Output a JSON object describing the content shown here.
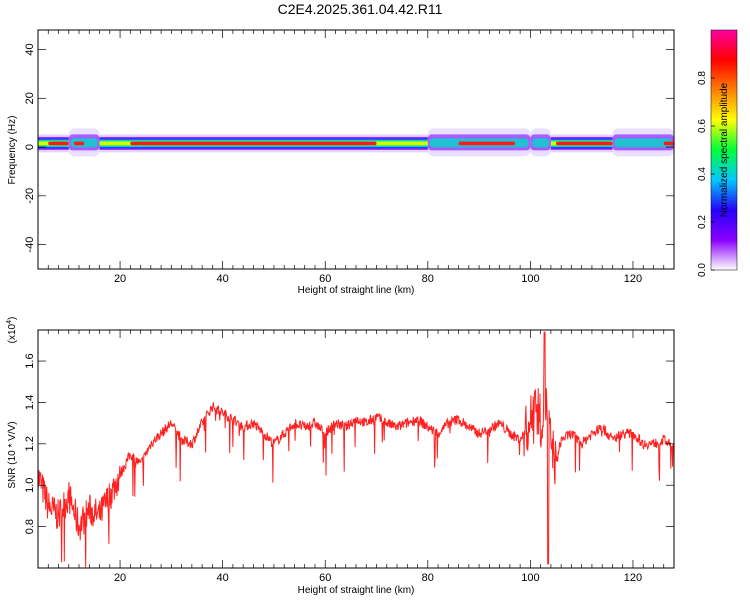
{
  "title": "C2E4.2025.361.04.42.R11",
  "colormap": {
    "stops": [
      "#ffffff",
      "#8a00ff",
      "#2600ff",
      "#00c8ff",
      "#00ff3c",
      "#ffff00",
      "#ff8000",
      "#ff0000",
      "#ff00a0"
    ],
    "ticks": [
      "0.0",
      "0.2",
      "0.4",
      "0.6",
      "0.8"
    ],
    "label": "Normalized spectral amplitude"
  },
  "chart_data": [
    {
      "type": "heatmap",
      "xlabel": "Height of straight line (km)",
      "ylabel": "Frequency (Hz)",
      "xlim": [
        4,
        128
      ],
      "ylim": [
        -50,
        48
      ],
      "xticks": [
        "20",
        "40",
        "60",
        "80",
        "100",
        "120"
      ],
      "yticks": [
        "40",
        "20",
        "0",
        "-20",
        "-40"
      ],
      "band_center_hz": 1.5,
      "hotspots_km": [
        [
          6,
          10
        ],
        [
          11,
          13
        ],
        [
          22,
          70
        ],
        [
          86,
          97
        ],
        [
          105,
          116
        ],
        [
          126,
          128
        ]
      ],
      "wide_regions_km": [
        [
          10,
          16
        ],
        [
          80,
          100
        ],
        [
          100,
          104
        ],
        [
          116,
          128
        ]
      ]
    },
    {
      "type": "line",
      "xlabel": "Height of straight line (km)",
      "ylabel": "SNR (10 * V/V)",
      "yscale_label": "(x10",
      "yscale_exp": "4",
      "xlim": [
        4,
        128
      ],
      "ylim": [
        0.6,
        1.75
      ],
      "xticks": [
        "20",
        "40",
        "60",
        "80",
        "100",
        "120"
      ],
      "yticks": [
        "0.8",
        "1.0",
        "1.2",
        "1.4",
        "1.6"
      ],
      "color": "#ff2020",
      "x": [
        4,
        6,
        8,
        10,
        12,
        14,
        16,
        18,
        20,
        22,
        24,
        26,
        28,
        30,
        32,
        34,
        36,
        38,
        40,
        42,
        44,
        46,
        48,
        50,
        52,
        54,
        56,
        58,
        60,
        62,
        64,
        66,
        68,
        70,
        72,
        74,
        76,
        78,
        80,
        82,
        84,
        86,
        88,
        90,
        92,
        94,
        96,
        98,
        100,
        101,
        102,
        103,
        104,
        105,
        106,
        108,
        110,
        112,
        114,
        116,
        118,
        120,
        122,
        124,
        126,
        128
      ],
      "y": [
        1.05,
        0.9,
        0.85,
        0.95,
        0.8,
        0.88,
        0.85,
        0.95,
        1.05,
        1.15,
        1.1,
        1.2,
        1.25,
        1.3,
        1.22,
        1.2,
        1.3,
        1.38,
        1.35,
        1.32,
        1.28,
        1.3,
        1.25,
        1.2,
        1.25,
        1.3,
        1.28,
        1.3,
        1.25,
        1.3,
        1.28,
        1.32,
        1.3,
        1.33,
        1.3,
        1.28,
        1.3,
        1.32,
        1.28,
        1.25,
        1.3,
        1.32,
        1.28,
        1.25,
        1.27,
        1.3,
        1.25,
        1.22,
        1.3,
        1.45,
        1.3,
        1.4,
        1.2,
        1.1,
        1.22,
        1.25,
        1.2,
        1.25,
        1.28,
        1.22,
        1.25,
        1.25,
        1.2,
        1.2,
        1.22,
        1.18
      ]
    }
  ]
}
